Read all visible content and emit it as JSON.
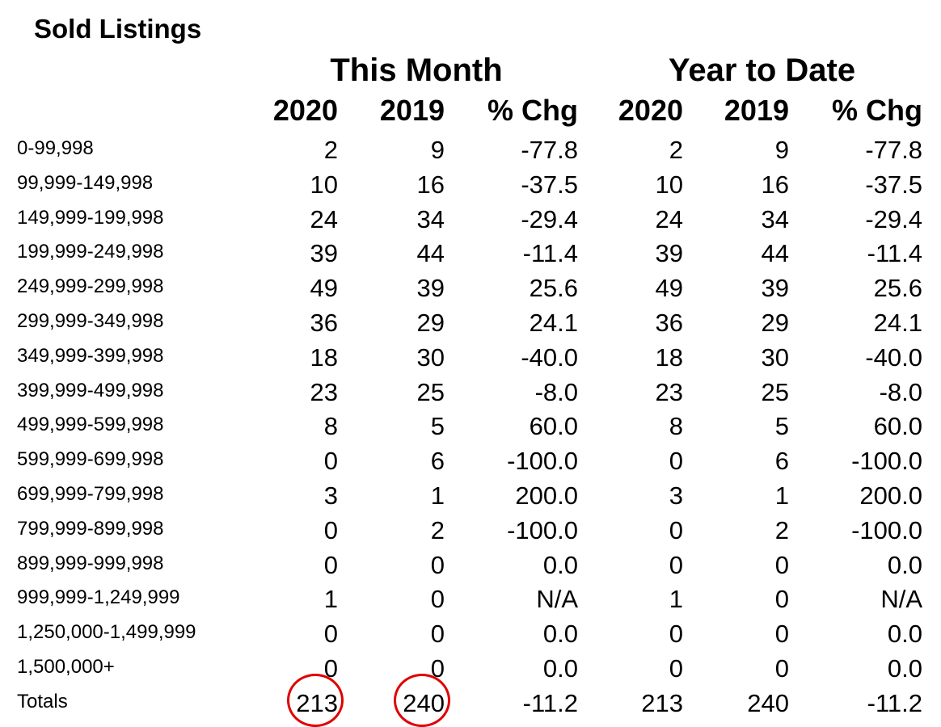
{
  "title": "Sold Listings",
  "groups": {
    "this_month": "This Month",
    "year_to_date": "Year to Date"
  },
  "columns": [
    "2020",
    "2019",
    "% Chg",
    "2020",
    "2019",
    "% Chg"
  ],
  "rows": [
    {
      "range": "0-99,998",
      "values": [
        "2",
        "9",
        "-77.8",
        "2",
        "9",
        "-77.8"
      ]
    },
    {
      "range": "99,999-149,998",
      "values": [
        "10",
        "16",
        "-37.5",
        "10",
        "16",
        "-37.5"
      ]
    },
    {
      "range": "149,999-199,998",
      "values": [
        "24",
        "34",
        "-29.4",
        "24",
        "34",
        "-29.4"
      ]
    },
    {
      "range": "199,999-249,998",
      "values": [
        "39",
        "44",
        "-11.4",
        "39",
        "44",
        "-11.4"
      ]
    },
    {
      "range": "249,999-299,998",
      "values": [
        "49",
        "39",
        "25.6",
        "49",
        "39",
        "25.6"
      ]
    },
    {
      "range": "299,999-349,998",
      "values": [
        "36",
        "29",
        "24.1",
        "36",
        "29",
        "24.1"
      ]
    },
    {
      "range": "349,999-399,998",
      "values": [
        "18",
        "30",
        "-40.0",
        "18",
        "30",
        "-40.0"
      ]
    },
    {
      "range": "399,999-499,998",
      "values": [
        "23",
        "25",
        "-8.0",
        "23",
        "25",
        "-8.0"
      ]
    },
    {
      "range": "499,999-599,998",
      "values": [
        "8",
        "5",
        "60.0",
        "8",
        "5",
        "60.0"
      ]
    },
    {
      "range": "599,999-699,998",
      "values": [
        "0",
        "6",
        "-100.0",
        "0",
        "6",
        "-100.0"
      ]
    },
    {
      "range": "699,999-799,998",
      "values": [
        "3",
        "1",
        "200.0",
        "3",
        "1",
        "200.0"
      ]
    },
    {
      "range": "799,999-899,998",
      "values": [
        "0",
        "2",
        "-100.0",
        "0",
        "2",
        "-100.0"
      ]
    },
    {
      "range": "899,999-999,998",
      "values": [
        "0",
        "0",
        "0.0",
        "0",
        "0",
        "0.0"
      ]
    },
    {
      "range": "999,999-1,249,999",
      "values": [
        "1",
        "0",
        "N/A",
        "1",
        "0",
        "N/A"
      ]
    },
    {
      "range": "1,250,000-1,499,999",
      "values": [
        "0",
        "0",
        "0.0",
        "0",
        "0",
        "0.0"
      ]
    },
    {
      "range": "1,500,000+",
      "values": [
        "0",
        "0",
        "0.0",
        "0",
        "0",
        "0.0"
      ]
    }
  ],
  "totals": {
    "label": "Totals",
    "values": [
      "213",
      "240",
      "-11.2",
      "213",
      "240",
      "-11.2"
    ]
  },
  "highlight_color": "#e00000"
}
